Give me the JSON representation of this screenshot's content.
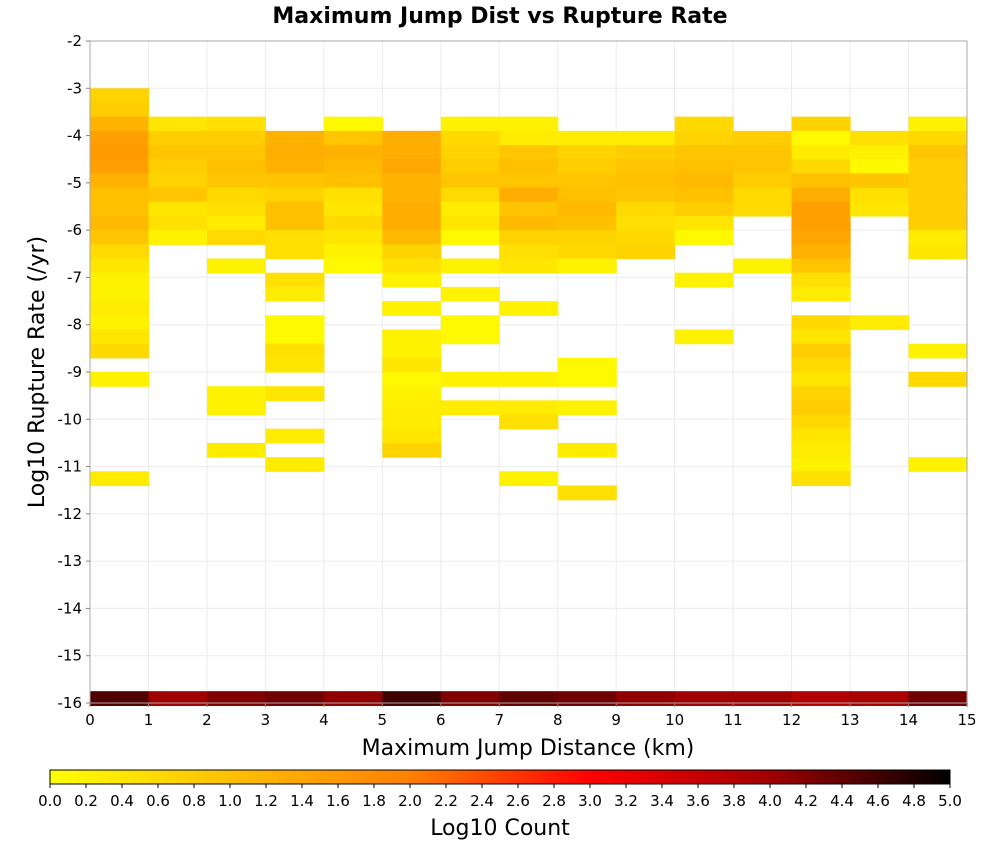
{
  "chart_data": {
    "type": "heatmap",
    "title": "Maximum Jump Dist vs Rupture Rate",
    "xlabel": "Maximum Jump Distance (km)",
    "ylabel": "Log10 Rupture Rate (/yr)",
    "xlim": [
      0,
      15
    ],
    "ylim": [
      -16,
      -2
    ],
    "x_ticks": [
      "0",
      "1",
      "2",
      "3",
      "4",
      "5",
      "6",
      "7",
      "8",
      "9",
      "10",
      "11",
      "12",
      "13",
      "14",
      "15"
    ],
    "y_ticks": [
      "-2",
      "-3",
      "-4",
      "-5",
      "-6",
      "-7",
      "-8",
      "-9",
      "-10",
      "-11",
      "-12",
      "-13",
      "-14",
      "-15",
      "-16"
    ],
    "grid": true,
    "colorbar": {
      "label": "Log10 Count",
      "range": [
        0.0,
        5.0
      ],
      "ticks": [
        "0.0",
        "0.2",
        "0.4",
        "0.6",
        "0.8",
        "1.0",
        "1.2",
        "1.4",
        "1.6",
        "1.8",
        "2.0",
        "2.2",
        "2.4",
        "2.6",
        "2.8",
        "3.0",
        "3.2",
        "3.4",
        "3.6",
        "3.8",
        "4.0",
        "4.2",
        "4.4",
        "4.6",
        "4.8",
        "5.0"
      ],
      "colors": [
        "#ffff00",
        "#ffc000",
        "#ff8000",
        "#ff0000",
        "#a00000",
        "#000000"
      ]
    },
    "bin_width_x": 1,
    "bin_height_y": 0.3,
    "columns": [
      {
        "x": 0,
        "cells": [
          [
            -3.15,
            0.7
          ],
          [
            -3.45,
            0.8
          ],
          [
            -3.75,
            1.2
          ],
          [
            -4.05,
            1.5
          ],
          [
            -4.35,
            1.6
          ],
          [
            -4.65,
            1.5
          ],
          [
            -4.95,
            1.2
          ],
          [
            -5.25,
            1.0
          ],
          [
            -5.55,
            1.0
          ],
          [
            -5.85,
            1.1
          ],
          [
            -6.15,
            0.9
          ],
          [
            -6.45,
            0.6
          ],
          [
            -6.75,
            0.4
          ],
          [
            -7.05,
            0.2
          ],
          [
            -7.35,
            0.2
          ],
          [
            -7.65,
            0.3
          ],
          [
            -7.95,
            0.2
          ],
          [
            -8.25,
            0.4
          ],
          [
            -8.55,
            0.6
          ],
          [
            -9.15,
            0.2
          ],
          [
            -11.25,
            0.3
          ],
          [
            -15.9,
            4.5
          ]
        ]
      },
      {
        "x": 1,
        "cells": [
          [
            -3.75,
            0.4
          ],
          [
            -4.05,
            0.8
          ],
          [
            -4.35,
            0.9
          ],
          [
            -4.65,
            0.8
          ],
          [
            -4.95,
            0.7
          ],
          [
            -5.25,
            0.9
          ],
          [
            -5.55,
            0.4
          ],
          [
            -5.85,
            0.5
          ],
          [
            -6.15,
            0.2
          ],
          [
            -15.9,
            4.0
          ]
        ]
      },
      {
        "x": 2,
        "cells": [
          [
            -3.75,
            0.5
          ],
          [
            -4.05,
            0.8
          ],
          [
            -4.35,
            0.9
          ],
          [
            -4.65,
            1.0
          ],
          [
            -4.95,
            0.9
          ],
          [
            -5.25,
            0.6
          ],
          [
            -5.55,
            0.5
          ],
          [
            -5.85,
            0.3
          ],
          [
            -6.15,
            0.6
          ],
          [
            -6.75,
            0.2
          ],
          [
            -9.45,
            0.2
          ],
          [
            -9.75,
            0.2
          ],
          [
            -10.65,
            0.3
          ],
          [
            -15.9,
            4.2
          ]
        ]
      },
      {
        "x": 3,
        "cells": [
          [
            -4.05,
            1.2
          ],
          [
            -4.35,
            1.3
          ],
          [
            -4.65,
            1.2
          ],
          [
            -4.95,
            0.9
          ],
          [
            -5.25,
            0.7
          ],
          [
            -5.55,
            1.0
          ],
          [
            -5.85,
            1.0
          ],
          [
            -6.15,
            0.5
          ],
          [
            -6.45,
            0.5
          ],
          [
            -7.05,
            0.5
          ],
          [
            -7.35,
            0.3
          ],
          [
            -7.95,
            0.1
          ],
          [
            -8.25,
            0.1
          ],
          [
            -8.55,
            0.5
          ],
          [
            -8.85,
            0.4
          ],
          [
            -9.45,
            0.4
          ],
          [
            -10.35,
            0.3
          ],
          [
            -10.95,
            0.3
          ],
          [
            -15.9,
            4.3
          ]
        ]
      },
      {
        "x": 4,
        "cells": [
          [
            -3.75,
            0.1
          ],
          [
            -4.05,
            0.9
          ],
          [
            -4.35,
            1.2
          ],
          [
            -4.65,
            1.1
          ],
          [
            -4.95,
            1.0
          ],
          [
            -5.25,
            0.5
          ],
          [
            -5.55,
            0.4
          ],
          [
            -5.85,
            0.6
          ],
          [
            -6.15,
            0.4
          ],
          [
            -6.45,
            0.2
          ],
          [
            -6.75,
            0.1
          ],
          [
            -15.9,
            4.1
          ]
        ]
      },
      {
        "x": 5,
        "cells": [
          [
            -4.05,
            1.3
          ],
          [
            -4.35,
            1.3
          ],
          [
            -4.65,
            1.4
          ],
          [
            -4.95,
            1.2
          ],
          [
            -5.25,
            1.2
          ],
          [
            -5.55,
            1.3
          ],
          [
            -5.85,
            1.3
          ],
          [
            -6.15,
            1.1
          ],
          [
            -6.45,
            0.7
          ],
          [
            -6.75,
            0.5
          ],
          [
            -7.05,
            0.2
          ],
          [
            -7.65,
            0.2
          ],
          [
            -8.25,
            0.2
          ],
          [
            -8.55,
            0.2
          ],
          [
            -8.85,
            0.4
          ],
          [
            -9.15,
            0.1
          ],
          [
            -9.45,
            0.2
          ],
          [
            -9.75,
            0.3
          ],
          [
            -10.05,
            0.3
          ],
          [
            -10.35,
            0.4
          ],
          [
            -10.65,
            0.7
          ],
          [
            -15.9,
            4.6
          ]
        ]
      },
      {
        "x": 6,
        "cells": [
          [
            -3.75,
            0.2
          ],
          [
            -4.05,
            0.6
          ],
          [
            -4.35,
            0.7
          ],
          [
            -4.65,
            0.8
          ],
          [
            -4.95,
            0.9
          ],
          [
            -5.25,
            0.6
          ],
          [
            -5.55,
            0.3
          ],
          [
            -5.85,
            0.4
          ],
          [
            -6.15,
            0.1
          ],
          [
            -6.75,
            0.2
          ],
          [
            -7.35,
            0.2
          ],
          [
            -7.95,
            0.1
          ],
          [
            -8.25,
            0.1
          ],
          [
            -9.15,
            0.2
          ],
          [
            -9.75,
            0.3
          ],
          [
            -15.9,
            4.2
          ]
        ]
      },
      {
        "x": 7,
        "cells": [
          [
            -3.75,
            0.2
          ],
          [
            -4.05,
            0.3
          ],
          [
            -4.35,
            0.9
          ],
          [
            -4.65,
            1.0
          ],
          [
            -4.95,
            0.9
          ],
          [
            -5.25,
            1.3
          ],
          [
            -5.55,
            0.9
          ],
          [
            -5.85,
            1.1
          ],
          [
            -6.15,
            0.7
          ],
          [
            -6.45,
            0.5
          ],
          [
            -6.75,
            0.4
          ],
          [
            -7.65,
            0.2
          ],
          [
            -9.15,
            0.2
          ],
          [
            -9.75,
            0.3
          ],
          [
            -10.05,
            0.5
          ],
          [
            -11.25,
            0.2
          ],
          [
            -15.9,
            4.4
          ]
        ]
      },
      {
        "x": 8,
        "cells": [
          [
            -4.05,
            0.3
          ],
          [
            -4.35,
            0.7
          ],
          [
            -4.65,
            0.8
          ],
          [
            -4.95,
            0.9
          ],
          [
            -5.25,
            1.0
          ],
          [
            -5.55,
            1.1
          ],
          [
            -5.85,
            1.0
          ],
          [
            -6.15,
            0.7
          ],
          [
            -6.45,
            0.6
          ],
          [
            -6.75,
            0.2
          ],
          [
            -8.85,
            0.1
          ],
          [
            -9.15,
            0.1
          ],
          [
            -9.75,
            0.2
          ],
          [
            -10.65,
            0.3
          ],
          [
            -11.55,
            0.5
          ],
          [
            -15.9,
            4.3
          ]
        ]
      },
      {
        "x": 9,
        "cells": [
          [
            -4.05,
            0.3
          ],
          [
            -4.35,
            0.8
          ],
          [
            -4.65,
            0.9
          ],
          [
            -4.95,
            1.0
          ],
          [
            -5.25,
            0.9
          ],
          [
            -5.55,
            0.6
          ],
          [
            -5.85,
            0.5
          ],
          [
            -6.15,
            0.6
          ],
          [
            -6.45,
            0.7
          ],
          [
            -15.9,
            4.1
          ]
        ]
      },
      {
        "x": 10,
        "cells": [
          [
            -3.75,
            0.6
          ],
          [
            -4.05,
            0.7
          ],
          [
            -4.35,
            0.9
          ],
          [
            -4.65,
            1.0
          ],
          [
            -4.95,
            1.1
          ],
          [
            -5.25,
            1.0
          ],
          [
            -5.55,
            0.8
          ],
          [
            -5.85,
            0.4
          ],
          [
            -6.15,
            0.1
          ],
          [
            -7.05,
            0.2
          ],
          [
            -8.25,
            0.2
          ],
          [
            -15.9,
            4.0
          ]
        ]
      },
      {
        "x": 11,
        "cells": [
          [
            -4.05,
            0.8
          ],
          [
            -4.35,
            0.9
          ],
          [
            -4.65,
            0.9
          ],
          [
            -4.95,
            0.8
          ],
          [
            -5.25,
            0.6
          ],
          [
            -5.55,
            0.6
          ],
          [
            -6.75,
            0.2
          ],
          [
            -15.9,
            4.0
          ]
        ]
      },
      {
        "x": 12,
        "cells": [
          [
            -3.75,
            0.7
          ],
          [
            -4.05,
            0.1
          ],
          [
            -4.35,
            0.3
          ],
          [
            -4.65,
            0.6
          ],
          [
            -4.95,
            1.0
          ],
          [
            -5.25,
            1.3
          ],
          [
            -5.55,
            1.5
          ],
          [
            -5.85,
            1.5
          ],
          [
            -6.15,
            1.4
          ],
          [
            -6.45,
            1.2
          ],
          [
            -6.75,
            0.9
          ],
          [
            -7.05,
            0.5
          ],
          [
            -7.35,
            0.3
          ],
          [
            -7.95,
            0.6
          ],
          [
            -8.25,
            0.4
          ],
          [
            -8.55,
            0.8
          ],
          [
            -8.85,
            0.6
          ],
          [
            -9.15,
            0.4
          ],
          [
            -9.45,
            0.7
          ],
          [
            -9.75,
            0.8
          ],
          [
            -10.05,
            0.6
          ],
          [
            -10.35,
            0.4
          ],
          [
            -10.65,
            0.3
          ],
          [
            -10.95,
            0.2
          ],
          [
            -11.25,
            0.5
          ],
          [
            -15.9,
            3.8
          ]
        ]
      },
      {
        "x": 13,
        "cells": [
          [
            -4.05,
            0.5
          ],
          [
            -4.35,
            0.2
          ],
          [
            -4.65,
            0.1
          ],
          [
            -4.95,
            0.9
          ],
          [
            -5.25,
            0.5
          ],
          [
            -5.55,
            0.4
          ],
          [
            -7.95,
            0.3
          ],
          [
            -15.9,
            3.9
          ]
        ]
      },
      {
        "x": 14,
        "cells": [
          [
            -3.75,
            0.2
          ],
          [
            -4.05,
            0.6
          ],
          [
            -4.35,
            0.9
          ],
          [
            -4.65,
            0.8
          ],
          [
            -4.95,
            0.8
          ],
          [
            -5.25,
            0.8
          ],
          [
            -5.55,
            0.8
          ],
          [
            -5.85,
            0.8
          ],
          [
            -6.15,
            0.3
          ],
          [
            -6.45,
            0.4
          ],
          [
            -8.55,
            0.2
          ],
          [
            -9.15,
            0.6
          ],
          [
            -10.95,
            0.2
          ],
          [
            -15.9,
            4.3
          ]
        ]
      }
    ]
  }
}
